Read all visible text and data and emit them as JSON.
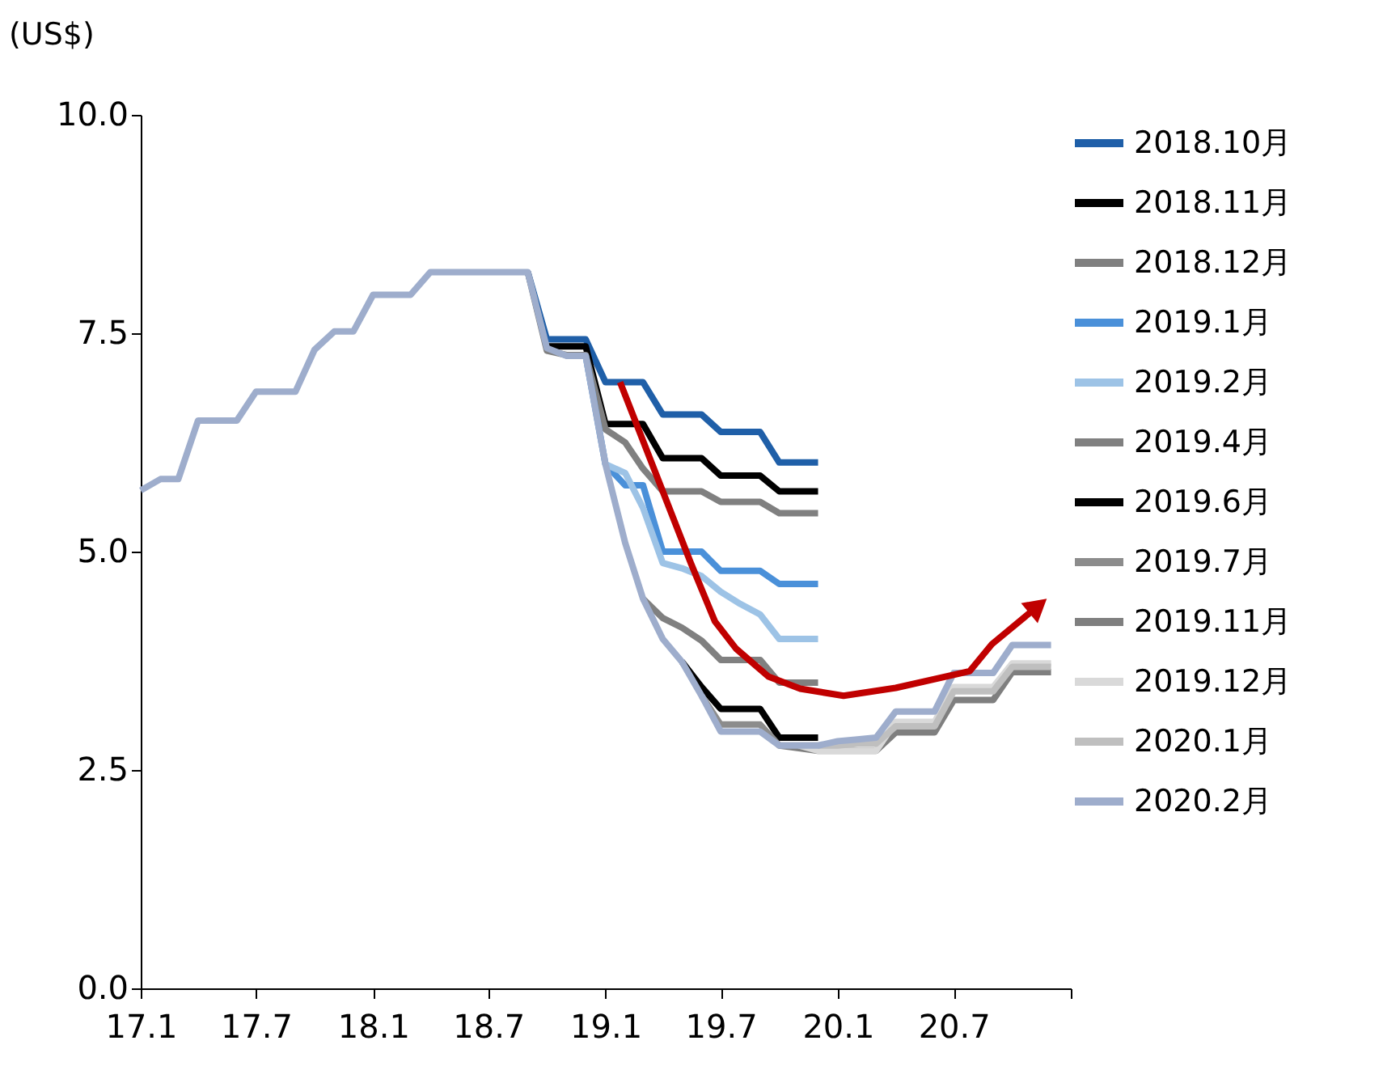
{
  "chart_data": {
    "type": "line",
    "ylabel": "(US$)",
    "xlim": [
      "2017-01",
      "2021-01"
    ],
    "xticks": [
      {
        "value": "2017-01",
        "label": "17.1"
      },
      {
        "value": "2017-07",
        "label": "17.7"
      },
      {
        "value": "2018-01",
        "label": "18.1"
      },
      {
        "value": "2018-07",
        "label": "18.7"
      },
      {
        "value": "2019-01",
        "label": "19.1"
      },
      {
        "value": "2019-07",
        "label": "19.7"
      },
      {
        "value": "2020-01",
        "label": "20.1"
      },
      {
        "value": "2020-07",
        "label": "20.7"
      },
      {
        "value": "2021-01",
        "label": null
      }
    ],
    "ylim": [
      0,
      10
    ],
    "yticks": [
      {
        "value": 0,
        "label": "0.0"
      },
      {
        "value": 2.5,
        "label": "2.5"
      },
      {
        "value": 5,
        "label": "5.0"
      },
      {
        "value": 7.5,
        "label": "7.5"
      },
      {
        "value": 10,
        "label": "10.0"
      }
    ],
    "grid": false,
    "legend": "right",
    "marker": "none",
    "line_style": "solid",
    "series": [
      {
        "name": "2018.10月",
        "color": "#1f5fa8",
        "x": [
          "2018-09",
          "2018-10",
          "2018-11",
          "2018-12",
          "2019-01",
          "2019-02",
          "2019-03",
          "2019-04",
          "2019-05",
          "2019-06",
          "2019-07",
          "2019-08",
          "2019-09",
          "2019-10",
          "2019-11",
          "2019-12"
        ],
        "values": [
          8.2,
          7.43,
          7.43,
          7.43,
          6.94,
          6.94,
          6.94,
          6.57,
          6.57,
          6.57,
          6.37,
          6.37,
          6.37,
          6.02,
          6.02,
          6.02
        ]
      },
      {
        "name": "2018.11月",
        "color": "#000000",
        "x": [
          "2018-10",
          "2018-11",
          "2018-12",
          "2019-01",
          "2019-02",
          "2019-03",
          "2019-04",
          "2019-05",
          "2019-06",
          "2019-07",
          "2019-08",
          "2019-09",
          "2019-10",
          "2019-11",
          "2019-12"
        ],
        "values": [
          7.35,
          7.35,
          7.35,
          6.46,
          6.46,
          6.46,
          6.07,
          6.07,
          6.07,
          5.87,
          5.87,
          5.87,
          5.69,
          5.69,
          5.69
        ]
      },
      {
        "name": "2018.12月",
        "color": "#808080",
        "x": [
          "2018-09",
          "2018-10",
          "2018-11",
          "2018-12",
          "2019-01",
          "2019-02",
          "2019-03",
          "2019-04",
          "2019-05",
          "2019-06",
          "2019-07",
          "2019-08",
          "2019-09",
          "2019-10",
          "2019-11",
          "2019-12"
        ],
        "values": [
          8.2,
          7.3,
          7.25,
          7.25,
          6.4,
          6.25,
          5.95,
          5.69,
          5.69,
          5.69,
          5.57,
          5.57,
          5.57,
          5.44,
          5.44,
          5.44
        ]
      },
      {
        "name": "2019.1月",
        "color": "#4a90d9",
        "x": [
          "2018-12",
          "2019-01",
          "2019-02",
          "2019-03",
          "2019-04",
          "2019-05",
          "2019-06",
          "2019-07",
          "2019-08",
          "2019-09",
          "2019-10",
          "2019-11",
          "2019-12"
        ],
        "values": [
          7.24,
          6.0,
          5.76,
          5.76,
          5.0,
          5.0,
          5.0,
          4.78,
          4.78,
          4.78,
          4.63,
          4.63,
          4.63
        ]
      },
      {
        "name": "2019.2月",
        "color": "#9dc3e6",
        "x": [
          "2019-01",
          "2019-02",
          "2019-03",
          "2019-04",
          "2019-05",
          "2019-06",
          "2019-07",
          "2019-08",
          "2019-09",
          "2019-10",
          "2019-11",
          "2019-12"
        ],
        "values": [
          6.0,
          5.9,
          5.5,
          4.87,
          4.81,
          4.72,
          4.54,
          4.4,
          4.28,
          4.0,
          4.0,
          4.0
        ]
      },
      {
        "name": "2019.4月",
        "color": "#808080",
        "x": [
          "2019-03",
          "2019-04",
          "2019-05",
          "2019-06",
          "2019-07",
          "2019-08",
          "2019-09",
          "2019-10",
          "2019-11",
          "2019-12"
        ],
        "values": [
          4.46,
          4.24,
          4.13,
          3.98,
          3.76,
          3.76,
          3.76,
          3.5,
          3.5,
          3.5
        ]
      },
      {
        "name": "2019.6月",
        "color": "#000000",
        "x": [
          "2019-05",
          "2019-06",
          "2019-07",
          "2019-08",
          "2019-09",
          "2019-10",
          "2019-11",
          "2019-12"
        ],
        "values": [
          3.74,
          3.45,
          3.2,
          3.2,
          3.2,
          2.87,
          2.87,
          2.87
        ]
      },
      {
        "name": "2019.7月",
        "color": "#8c8c8c",
        "x": [
          "2019-06",
          "2019-07",
          "2019-08",
          "2019-09",
          "2019-10",
          "2019-11",
          "2019-12"
        ],
        "values": [
          3.35,
          3.02,
          3.02,
          3.02,
          2.78,
          2.78,
          2.78
        ]
      },
      {
        "name": "2019.11月",
        "color": "#7f7f7f",
        "x": [
          "2019-10",
          "2019-11",
          "2019-12",
          "2020-01",
          "2020-02",
          "2020-03",
          "2020-04",
          "2020-05",
          "2020-06",
          "2020-07",
          "2020-08",
          "2020-09",
          "2020-10",
          "2020-11",
          "2020-12"
        ],
        "values": [
          2.78,
          2.75,
          2.72,
          2.72,
          2.72,
          2.72,
          2.93,
          2.93,
          2.93,
          3.3,
          3.3,
          3.3,
          3.62,
          3.62,
          3.62
        ]
      },
      {
        "name": "2019.12月",
        "color": "#d9d9d9",
        "x": [
          "2019-11",
          "2019-12",
          "2020-01",
          "2020-02",
          "2020-03",
          "2020-04",
          "2020-05",
          "2020-06",
          "2020-07",
          "2020-08",
          "2020-09",
          "2020-10",
          "2020-11",
          "2020-12"
        ],
        "values": [
          2.78,
          2.72,
          2.72,
          2.72,
          2.72,
          3.05,
          3.05,
          3.05,
          3.45,
          3.45,
          3.45,
          3.72,
          3.72,
          3.72
        ]
      },
      {
        "name": "2020.1月",
        "color": "#bfbfbf",
        "x": [
          "2019-12",
          "2020-01",
          "2020-02",
          "2020-03",
          "2020-04",
          "2020-05",
          "2020-06",
          "2020-07",
          "2020-08",
          "2020-09",
          "2020-10",
          "2020-11",
          "2020-12"
        ],
        "values": [
          2.78,
          2.78,
          2.8,
          2.8,
          3.0,
          3.0,
          3.0,
          3.4,
          3.4,
          3.4,
          3.68,
          3.68,
          3.68
        ]
      },
      {
        "name": "2020.2月",
        "color": "#9eadcc",
        "x": [
          "2017-01",
          "2017-02",
          "2017-03",
          "2017-04",
          "2017-05",
          "2017-06",
          "2017-07",
          "2017-08",
          "2017-09",
          "2017-10",
          "2017-11",
          "2017-12",
          "2018-01",
          "2018-02",
          "2018-03",
          "2018-04",
          "2018-05",
          "2018-06",
          "2018-07",
          "2018-08",
          "2018-09",
          "2018-10",
          "2018-11",
          "2018-12",
          "2019-01",
          "2019-02",
          "2019-03",
          "2019-04",
          "2019-05",
          "2019-06",
          "2019-07",
          "2019-08",
          "2019-09",
          "2019-10",
          "2019-11",
          "2019-12",
          "2020-01",
          "2020-02",
          "2020-03",
          "2020-04",
          "2020-05",
          "2020-06",
          "2020-07",
          "2020-08",
          "2020-09",
          "2020-10",
          "2020-11",
          "2020-12"
        ],
        "values": [
          5.7,
          5.83,
          5.83,
          6.5,
          6.5,
          6.5,
          6.83,
          6.83,
          6.83,
          7.31,
          7.52,
          7.52,
          7.94,
          7.94,
          7.94,
          8.2,
          8.2,
          8.2,
          8.2,
          8.2,
          8.2,
          7.33,
          7.24,
          7.24,
          6.0,
          5.1,
          4.46,
          4.0,
          3.74,
          3.35,
          2.94,
          2.94,
          2.94,
          2.78,
          2.78,
          2.78,
          2.83,
          2.85,
          2.87,
          3.17,
          3.17,
          3.17,
          3.61,
          3.61,
          3.61,
          3.93,
          3.93,
          3.93
        ]
      },
      {
        "type": "line",
        "color": "#c00000",
        "x": [
          "2019-01-24",
          "2019-04-08",
          "2019-05-15",
          "2019-06-22",
          "2019-07-25",
          "2019-09-14",
          "2019-11-03",
          "2020-01-10",
          "2020-04-01",
          "2020-07-26",
          "2020-08-30",
          "2020-11-06"
        ],
        "values": [
          6.94,
          5.56,
          4.87,
          4.2,
          3.89,
          3.57,
          3.43,
          3.35,
          3.44,
          3.63,
          3.94,
          4.35
        ]
      }
    ]
  }
}
